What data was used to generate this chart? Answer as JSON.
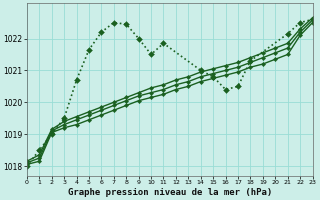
{
  "title": "Graphe pression niveau de la mer (hPa)",
  "bg_color": "#cceee8",
  "grid_color": "#99ddd5",
  "line_color": "#1a6020",
  "xlim": [
    0,
    23
  ],
  "ylim": [
    1017.7,
    1023.1
  ],
  "xticks": [
    0,
    1,
    2,
    3,
    4,
    5,
    6,
    7,
    8,
    9,
    10,
    11,
    12,
    13,
    14,
    15,
    16,
    17,
    18,
    19,
    20,
    21,
    22,
    23
  ],
  "yticks": [
    1018,
    1019,
    1020,
    1021,
    1022
  ],
  "series": [
    {
      "name": "dotted_spike",
      "x": [
        0,
        1,
        2,
        3,
        4,
        5,
        6,
        7,
        8,
        9,
        10,
        11,
        14,
        15,
        16,
        17,
        18,
        21,
        22,
        23
      ],
      "y": [
        1018.0,
        1018.5,
        1019.0,
        1019.5,
        1020.7,
        1021.65,
        1022.2,
        1022.5,
        1022.45,
        1022.0,
        1021.5,
        1021.85,
        1021.0,
        1020.8,
        1020.4,
        1020.5,
        1021.3,
        1022.15,
        1022.5,
        1022.6
      ],
      "style": "dotted",
      "lw": 1.2,
      "markersize": 3.0
    },
    {
      "name": "solid_low",
      "x": [
        0,
        1,
        2,
        3,
        4,
        5,
        6,
        7,
        8,
        9,
        10,
        11,
        12,
        13,
        14,
        15,
        16,
        17,
        18,
        19,
        20,
        21,
        22,
        23
      ],
      "y": [
        1018.05,
        1018.15,
        1019.05,
        1019.2,
        1019.3,
        1019.45,
        1019.6,
        1019.75,
        1019.9,
        1020.05,
        1020.15,
        1020.25,
        1020.4,
        1020.5,
        1020.65,
        1020.75,
        1020.85,
        1020.95,
        1021.1,
        1021.2,
        1021.35,
        1021.5,
        1022.1,
        1022.5
      ],
      "style": "solid",
      "lw": 1.0,
      "markersize": 2.2
    },
    {
      "name": "solid_mid",
      "x": [
        0,
        1,
        2,
        3,
        4,
        5,
        6,
        7,
        8,
        9,
        10,
        11,
        12,
        13,
        14,
        15,
        16,
        17,
        18,
        19,
        20,
        21,
        22,
        23
      ],
      "y": [
        1018.1,
        1018.25,
        1019.1,
        1019.3,
        1019.45,
        1019.6,
        1019.75,
        1019.9,
        1020.05,
        1020.2,
        1020.3,
        1020.4,
        1020.55,
        1020.65,
        1020.8,
        1020.9,
        1021.0,
        1021.1,
        1021.25,
        1021.4,
        1021.55,
        1021.7,
        1022.2,
        1022.58
      ],
      "style": "solid",
      "lw": 1.0,
      "markersize": 2.2
    },
    {
      "name": "solid_high",
      "x": [
        0,
        1,
        2,
        3,
        4,
        5,
        6,
        7,
        8,
        9,
        10,
        11,
        12,
        13,
        14,
        15,
        16,
        17,
        18,
        19,
        20,
        21,
        22,
        23
      ],
      "y": [
        1018.15,
        1018.35,
        1019.15,
        1019.4,
        1019.55,
        1019.7,
        1019.85,
        1020.0,
        1020.15,
        1020.3,
        1020.45,
        1020.55,
        1020.7,
        1020.8,
        1020.95,
        1021.05,
        1021.15,
        1021.25,
        1021.4,
        1021.55,
        1021.7,
        1021.85,
        1022.3,
        1022.65
      ],
      "style": "solid",
      "lw": 1.0,
      "markersize": 2.2
    }
  ]
}
